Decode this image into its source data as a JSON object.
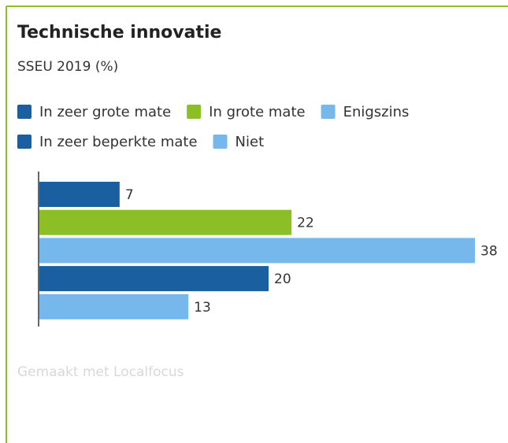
{
  "chart_data": {
    "type": "bar",
    "orientation": "horizontal",
    "title": "Technische innovatie",
    "subtitle": "SSEU 2019 (%)",
    "series": [
      {
        "name": "In zeer grote mate",
        "color": "#1a5fa0",
        "values": [
          7
        ]
      },
      {
        "name": "In grote mate",
        "color": "#8cbf26",
        "values": [
          22
        ]
      },
      {
        "name": "Enigszins",
        "color": "#76b7ec",
        "values": [
          38
        ]
      },
      {
        "name": "In zeer beperkte mate",
        "color": "#1a5fa0",
        "values": [
          20
        ]
      },
      {
        "name": "Niet",
        "color": "#76b7ec",
        "values": [
          13
        ]
      }
    ],
    "footer": "Gemaakt met Localfocus"
  }
}
